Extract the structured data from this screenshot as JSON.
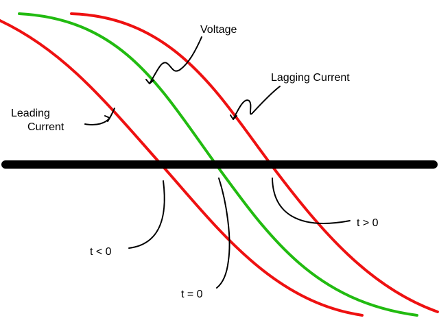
{
  "diagram": {
    "labels": {
      "voltage": "Voltage",
      "lagging_current": "Lagging Current",
      "leading_line1": "Leading",
      "leading_line2": "Current",
      "t_negative": "t < 0",
      "t_zero": "t = 0",
      "t_positive": "t > 0"
    },
    "colors": {
      "voltage_curve": "#22bb11",
      "current_curves": "#ee1111",
      "axis": "#000000",
      "background": "#ffffff"
    }
  }
}
